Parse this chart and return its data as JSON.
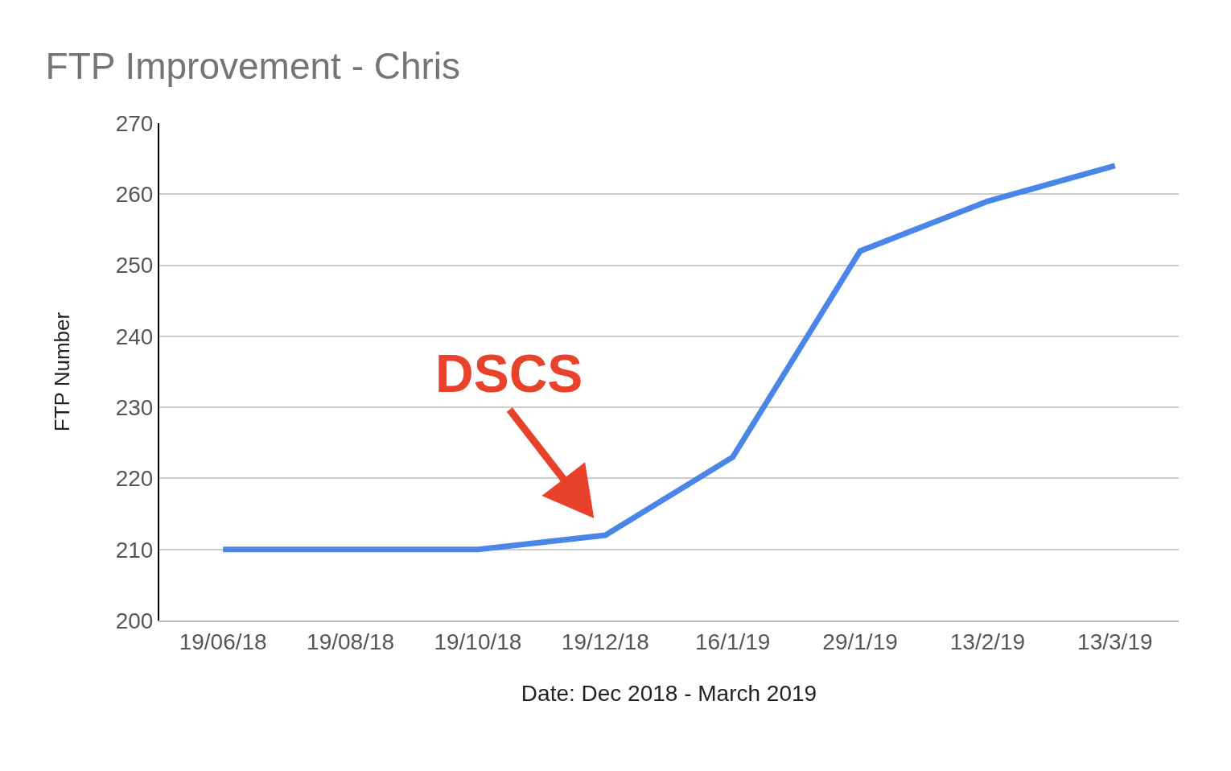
{
  "chart_data": {
    "type": "line",
    "title": "FTP Improvement - Chris",
    "xlabel": "Date: Dec 2018 - March 2019",
    "ylabel": "FTP Number",
    "categories": [
      "19/06/18",
      "19/08/18",
      "19/10/18",
      "19/12/18",
      "16/1/19",
      "29/1/19",
      "13/2/19",
      "13/3/19"
    ],
    "series": [
      {
        "color": "#4a86e8",
        "values": [
          210,
          210,
          210,
          212,
          223,
          252,
          259,
          264
        ]
      }
    ],
    "ylim": [
      200,
      270
    ],
    "yticks": [
      200,
      210,
      220,
      230,
      240,
      250,
      260,
      270
    ],
    "grid": "y",
    "marker": "none",
    "line_style": "solid",
    "annotations": [
      {
        "text": "DSCS",
        "x": "19/12/18",
        "y": 212
      }
    ]
  }
}
